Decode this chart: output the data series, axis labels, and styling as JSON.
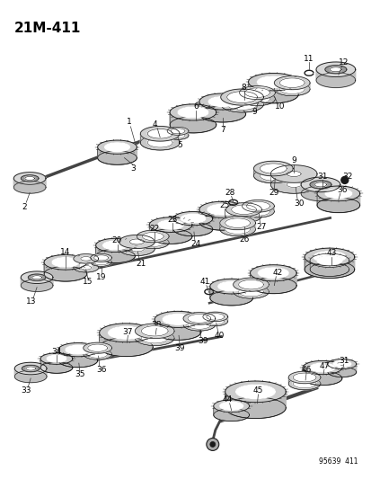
{
  "title": "21M-411",
  "footer": "95639  411",
  "bg_color": "#ffffff",
  "title_fontsize": 11,
  "label_fontsize": 6.5,
  "fig_width": 4.14,
  "fig_height": 5.33,
  "dpi": 100
}
